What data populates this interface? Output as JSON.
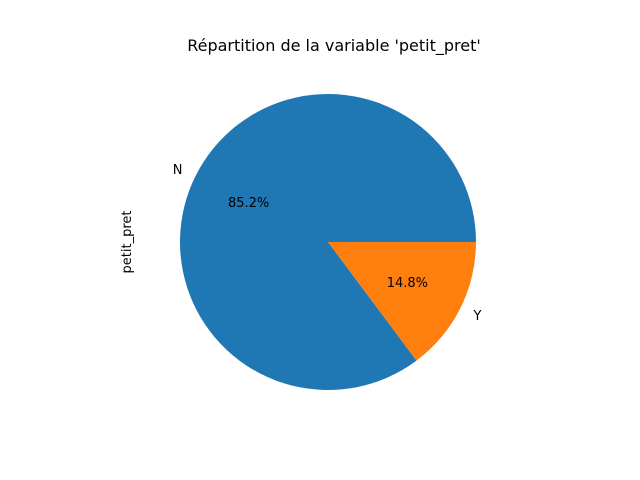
{
  "chart_data": {
    "type": "pie",
    "title": "Répartition de la variable 'petit_pret'",
    "ylabel": "petit_pret",
    "categories": [
      "N",
      "Y"
    ],
    "values": [
      85.2,
      14.8
    ],
    "percent_labels": [
      "85.2%",
      "14.8%"
    ],
    "colors": [
      "#1f77b4",
      "#ff7f0e"
    ],
    "start_angle_deg": 0,
    "direction": "counterclockwise"
  }
}
